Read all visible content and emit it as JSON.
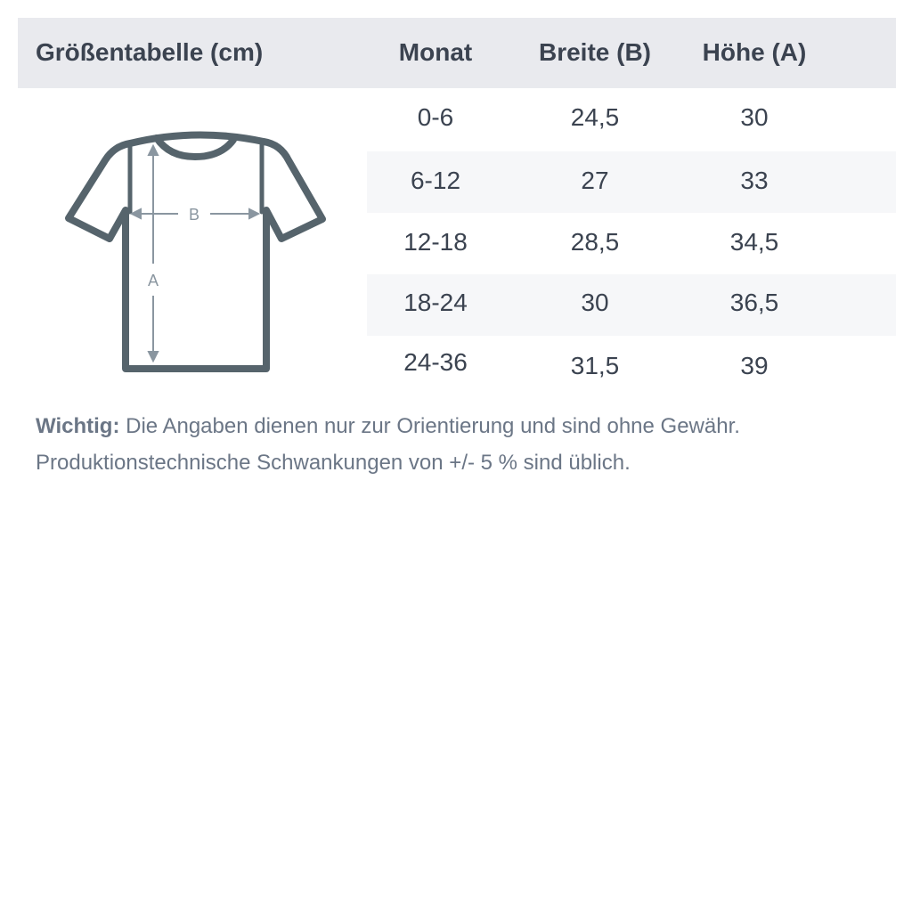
{
  "header": {
    "title": "Größentabelle (cm)",
    "columns": [
      "Monat",
      "Breite (B)",
      "Höhe (A)"
    ]
  },
  "rows": [
    [
      "0-6",
      "24,5",
      "30"
    ],
    [
      "6-12",
      "27",
      "33"
    ],
    [
      "12-18",
      "28,5",
      "34,5"
    ],
    [
      "18-24",
      "30",
      "36,5"
    ],
    [
      "24-36",
      "31,5",
      "39"
    ]
  ],
  "diagram": {
    "width_label": "B",
    "height_label": "A",
    "icon": "t-shirt-icon",
    "colors": {
      "outline": "#56646c",
      "arrows": "#8a96a0"
    }
  },
  "note": {
    "bold": "Wichtig:",
    "line1": " Die Angaben dienen nur zur Orientierung und sind ohne Gewähr.",
    "line2": "Produktionstechnische Schwankungen von +/- 5 % sind üblich."
  }
}
